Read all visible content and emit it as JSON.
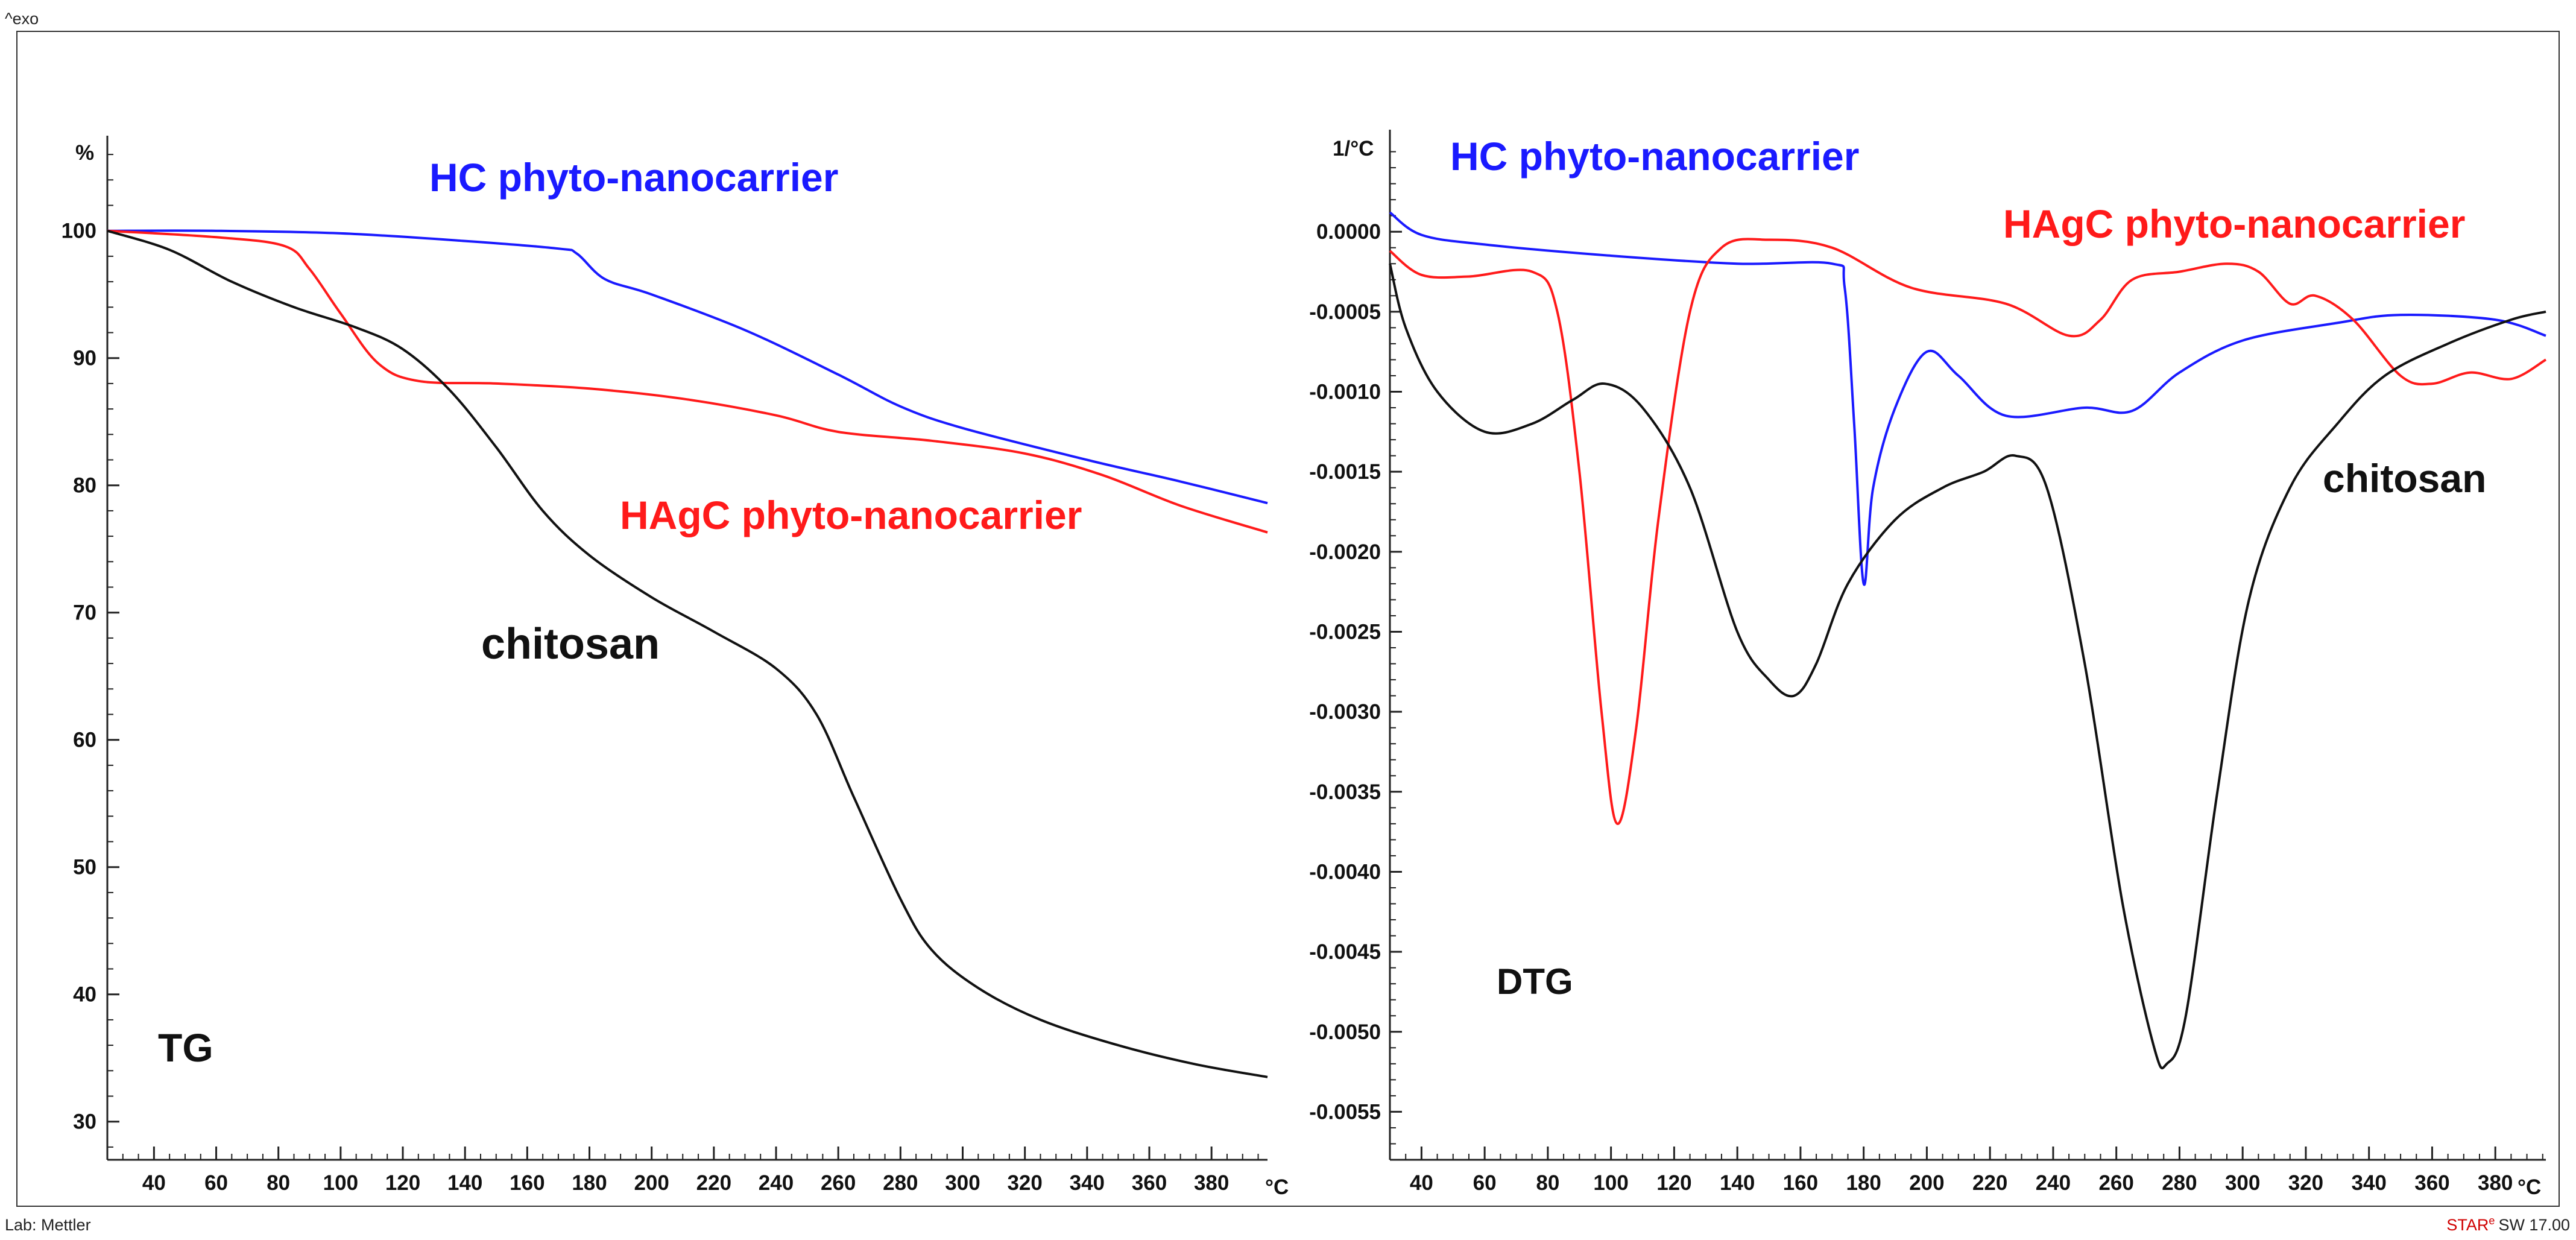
{
  "header": {
    "exo_label": "^exo"
  },
  "footer": {
    "lab": "Lab: Mettler",
    "software_brand": "STAR",
    "software_reg": "e",
    "software_version": "SW 17.00"
  },
  "colors": {
    "hc": "#1a1aff",
    "hagc": "#ff1a1a",
    "chitosan": "#111111"
  },
  "chart_data": [
    {
      "type": "line",
      "panel_label": "TG",
      "y_unit": "%",
      "x_unit": "°C",
      "xlim": [
        25,
        398
      ],
      "ylim": [
        27,
        107
      ],
      "x_ticks": [
        40,
        60,
        80,
        100,
        120,
        140,
        160,
        180,
        200,
        220,
        240,
        260,
        280,
        300,
        320,
        340,
        360,
        380
      ],
      "y_ticks": [
        30,
        40,
        50,
        60,
        70,
        80,
        90,
        100
      ],
      "y_tick_labels": [
        "30",
        "40",
        "50",
        "60",
        "70",
        "80",
        "90",
        "100"
      ],
      "series": [
        {
          "name": "HC phyto-nanocarrier",
          "color": "#1a1aff",
          "points": [
            [
              25,
              100
            ],
            [
              60,
              100
            ],
            [
              100,
              99.8
            ],
            [
              140,
              99.2
            ],
            [
              170,
              98.6
            ],
            [
              176,
              98.2
            ],
            [
              185,
              96.2
            ],
            [
              200,
              95
            ],
            [
              230,
              92.2
            ],
            [
              260,
              88.7
            ],
            [
              280,
              86.2
            ],
            [
              300,
              84.5
            ],
            [
              340,
              82
            ],
            [
              370,
              80.3
            ],
            [
              398,
              78.6
            ]
          ]
        },
        {
          "name": "HAgC phyto-nanocarrier",
          "color": "#ff1a1a",
          "points": [
            [
              25,
              100
            ],
            [
              60,
              99.5
            ],
            [
              82,
              98.8
            ],
            [
              90,
              97
            ],
            [
              100,
              93.5
            ],
            [
              112,
              89.6
            ],
            [
              125,
              88.2
            ],
            [
              150,
              88
            ],
            [
              180,
              87.6
            ],
            [
              210,
              86.8
            ],
            [
              240,
              85.5
            ],
            [
              260,
              84.2
            ],
            [
              290,
              83.5
            ],
            [
              320,
              82.5
            ],
            [
              345,
              80.8
            ],
            [
              370,
              78.4
            ],
            [
              398,
              76.3
            ]
          ]
        },
        {
          "name": "chitosan",
          "color": "#111111",
          "points": [
            [
              25,
              100
            ],
            [
              45,
              98.5
            ],
            [
              65,
              96
            ],
            [
              85,
              94
            ],
            [
              105,
              92.4
            ],
            [
              120,
              90.7
            ],
            [
              135,
              87.5
            ],
            [
              150,
              83
            ],
            [
              165,
              78
            ],
            [
              180,
              74.5
            ],
            [
              200,
              71.2
            ],
            [
              220,
              68.5
            ],
            [
              240,
              65.6
            ],
            [
              253,
              62
            ],
            [
              265,
              55.5
            ],
            [
              280,
              47.5
            ],
            [
              290,
              43.5
            ],
            [
              305,
              40.5
            ],
            [
              325,
              38
            ],
            [
              350,
              36
            ],
            [
              375,
              34.5
            ],
            [
              398,
              33.5
            ]
          ]
        }
      ],
      "annotations": [
        "HC phyto-nanocarrier",
        "HAgC phyto-nanocarrier",
        "chitosan"
      ]
    },
    {
      "type": "line",
      "panel_label": "DTG",
      "y_unit": "1/°C",
      "x_unit": "°C",
      "xlim": [
        30,
        396
      ],
      "ylim": [
        -0.0058,
        0.0006
      ],
      "x_ticks": [
        40,
        60,
        80,
        100,
        120,
        140,
        160,
        180,
        200,
        220,
        240,
        260,
        280,
        300,
        320,
        340,
        360,
        380
      ],
      "y_ticks": [
        0.0,
        -0.0005,
        -0.001,
        -0.0015,
        -0.002,
        -0.0025,
        -0.003,
        -0.0035,
        -0.004,
        -0.0045,
        -0.005,
        -0.0055
      ],
      "y_tick_labels": [
        "0.0000",
        "-0.0005",
        "-0.0010",
        "-0.0015",
        "-0.0020",
        "-0.0025",
        "-0.0030",
        "-0.0035",
        "-0.0040",
        "-0.0045",
        "-0.0050",
        "-0.0055"
      ],
      "series": [
        {
          "name": "HC phyto-nanocarrier",
          "color": "#1a1aff",
          "points": [
            [
              30,
              0.00012
            ],
            [
              40,
              -2e-05
            ],
            [
              60,
              -8e-05
            ],
            [
              100,
              -0.00015
            ],
            [
              140,
              -0.0002
            ],
            [
              170,
              -0.0002
            ],
            [
              174,
              -0.00035
            ],
            [
              177,
              -0.0012
            ],
            [
              180,
              -0.0022
            ],
            [
              183,
              -0.0016
            ],
            [
              190,
              -0.0011
            ],
            [
              200,
              -0.00075
            ],
            [
              210,
              -0.0009
            ],
            [
              225,
              -0.00115
            ],
            [
              250,
              -0.0011
            ],
            [
              265,
              -0.00112
            ],
            [
              280,
              -0.00088
            ],
            [
              300,
              -0.00068
            ],
            [
              330,
              -0.00057
            ],
            [
              350,
              -0.00052
            ],
            [
              380,
              -0.00055
            ],
            [
              396,
              -0.00065
            ]
          ]
        },
        {
          "name": "HAgC phyto-nanocarrier",
          "color": "#ff1a1a",
          "points": [
            [
              30,
              -0.00012
            ],
            [
              40,
              -0.00027
            ],
            [
              55,
              -0.00028
            ],
            [
              75,
              -0.00025
            ],
            [
              83,
              -0.0005
            ],
            [
              90,
              -0.0015
            ],
            [
              97,
              -0.003
            ],
            [
              102,
              -0.0037
            ],
            [
              108,
              -0.0031
            ],
            [
              115,
              -0.0018
            ],
            [
              125,
              -0.0005
            ],
            [
              135,
              -0.0001
            ],
            [
              150,
              -5e-05
            ],
            [
              170,
              -0.0001
            ],
            [
              195,
              -0.00035
            ],
            [
              225,
              -0.00045
            ],
            [
              245,
              -0.00065
            ],
            [
              255,
              -0.00055
            ],
            [
              265,
              -0.0003
            ],
            [
              280,
              -0.00025
            ],
            [
              295,
              -0.0002
            ],
            [
              305,
              -0.00025
            ],
            [
              315,
              -0.00045
            ],
            [
              323,
              -0.0004
            ],
            [
              335,
              -0.00055
            ],
            [
              350,
              -0.0009
            ],
            [
              360,
              -0.00095
            ],
            [
              372,
              -0.00088
            ],
            [
              385,
              -0.00092
            ],
            [
              396,
              -0.0008
            ]
          ]
        },
        {
          "name": "chitosan",
          "color": "#111111",
          "points": [
            [
              30,
              -0.0002
            ],
            [
              35,
              -0.0006
            ],
            [
              45,
              -0.001
            ],
            [
              60,
              -0.00125
            ],
            [
              75,
              -0.0012
            ],
            [
              88,
              -0.00105
            ],
            [
              98,
              -0.00095
            ],
            [
              110,
              -0.0011
            ],
            [
              125,
              -0.0016
            ],
            [
              140,
              -0.0025
            ],
            [
              150,
              -0.0028
            ],
            [
              158,
              -0.0029
            ],
            [
              165,
              -0.0027
            ],
            [
              175,
              -0.0022
            ],
            [
              190,
              -0.0018
            ],
            [
              205,
              -0.0016
            ],
            [
              218,
              -0.0015
            ],
            [
              228,
              -0.0014
            ],
            [
              238,
              -0.0016
            ],
            [
              250,
              -0.0027
            ],
            [
              262,
              -0.0042
            ],
            [
              272,
              -0.0051
            ],
            [
              276,
              -0.0052
            ],
            [
              282,
              -0.0049
            ],
            [
              292,
              -0.0035
            ],
            [
              302,
              -0.0023
            ],
            [
              315,
              -0.0016
            ],
            [
              330,
              -0.0012
            ],
            [
              345,
              -0.0009
            ],
            [
              365,
              -0.0007
            ],
            [
              385,
              -0.00055
            ],
            [
              396,
              -0.0005
            ]
          ]
        }
      ],
      "annotations": [
        "HC phyto-nanocarrier",
        "HAgC phyto-nanocarrier",
        "chitosan"
      ]
    }
  ]
}
